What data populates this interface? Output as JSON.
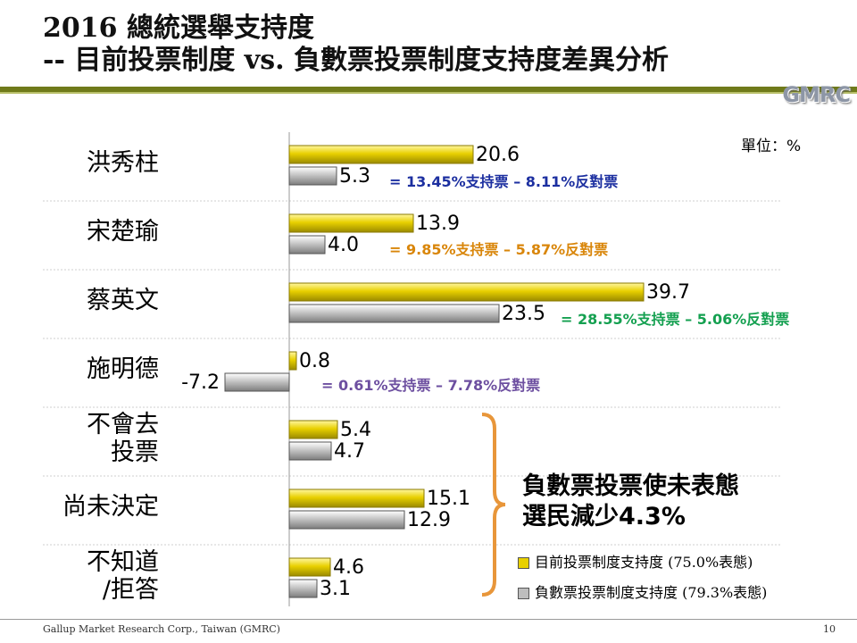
{
  "header": {
    "title_line1": "2016 總統選舉支持度",
    "title_line2": "-- 目前投票制度 vs. 負數票投票制度支持度差異分析",
    "logo": "GMRC"
  },
  "unit_label": "單位：%",
  "chart_data": {
    "type": "bar",
    "orientation": "horizontal",
    "categories": [
      "洪秀柱",
      "宋楚瑜",
      "蔡英文",
      "施明德",
      "不會去投票",
      "尚未決定",
      "不知道/拒答"
    ],
    "category_display": [
      [
        "洪秀柱"
      ],
      [
        "宋楚瑜"
      ],
      [
        "蔡英文"
      ],
      [
        "施明德"
      ],
      [
        "不會去",
        "投票"
      ],
      [
        "尚未決定"
      ],
      [
        "不知道",
        "/拒答"
      ]
    ],
    "series": [
      {
        "name": "目前投票制度支持度 (75.0%表態)",
        "color": "#e8d000",
        "values": [
          20.6,
          13.9,
          39.7,
          0.8,
          5.4,
          15.1,
          4.6
        ]
      },
      {
        "name": "負數票投票制度支持度 (79.3%表態)",
        "color": "#bdbdbd",
        "values": [
          5.3,
          4.0,
          23.5,
          -7.2,
          4.7,
          12.9,
          3.1
        ]
      }
    ],
    "value_labels": [
      [
        "20.6",
        "5.3"
      ],
      [
        "13.9",
        "4.0"
      ],
      [
        "39.7",
        "23.5"
      ],
      [
        "0.8",
        "-7.2"
      ],
      [
        "5.4",
        "4.7"
      ],
      [
        "15.1",
        "12.9"
      ],
      [
        "4.6",
        "3.1"
      ]
    ],
    "xlim": [
      -7.2,
      39.7
    ],
    "annotations": [
      {
        "text": "= 13.45%支持票 – 8.11%反對票",
        "color": "#1c2fa0"
      },
      {
        "text": "= 9.85%支持票 – 5.87%反對票",
        "color": "#d9860a"
      },
      {
        "text": "= 28.55%支持票 – 5.06%反對票",
        "color": "#14a050"
      },
      {
        "text": "= 0.61%支持票 – 7.78%反對票",
        "color": "#6d4fa0"
      }
    ]
  },
  "note": {
    "line1": "負數票投票使未表態",
    "line2": "選民減少4.3%"
  },
  "legend": [
    {
      "label": "目前投票制度支持度 (75.0%表態)",
      "color": "#e8d000"
    },
    {
      "label": "負數票投票制度支持度 (79.3%表態)",
      "color": "#bdbdbd"
    }
  ],
  "footer": {
    "text": "Gallup Market Research Corp., Taiwan (GMRC)",
    "page": "10"
  }
}
